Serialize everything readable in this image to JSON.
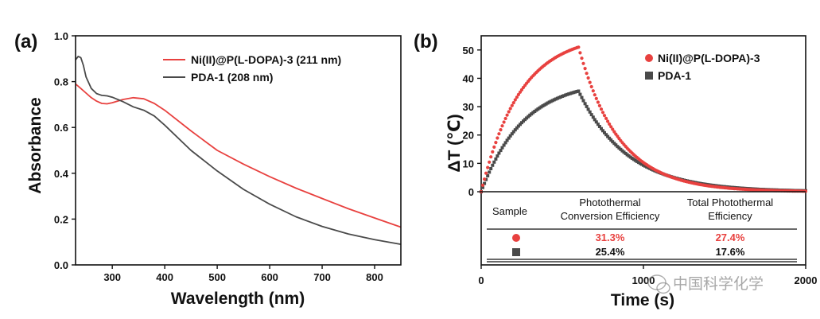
{
  "colors": {
    "red": "#e8413f",
    "dark": "#4a4a4a",
    "axis": "#111111"
  },
  "chart_data": [
    {
      "panel_label": "(a)",
      "type": "line",
      "xlabel": "Wavelength (nm)",
      "ylabel": "Absorbance",
      "xlim": [
        230,
        850
      ],
      "ylim": [
        0.0,
        1.0
      ],
      "xticks": [
        300,
        400,
        500,
        600,
        700,
        800
      ],
      "yticks": [
        0.0,
        0.2,
        0.4,
        0.6,
        0.8,
        1.0
      ],
      "ytick_labels": [
        "0.0",
        "0.2",
        "0.4",
        "0.6",
        "0.8",
        "1.0"
      ],
      "legend_position": "top-right",
      "series": [
        {
          "name": "Ni(II)@P(L-DOPA)-3 (211 nm)",
          "color": "#e8413f",
          "x": [
            230,
            240,
            250,
            260,
            270,
            280,
            290,
            300,
            310,
            320,
            340,
            360,
            380,
            400,
            450,
            500,
            550,
            600,
            650,
            700,
            750,
            800,
            850
          ],
          "y": [
            0.79,
            0.77,
            0.75,
            0.73,
            0.715,
            0.705,
            0.703,
            0.708,
            0.715,
            0.722,
            0.73,
            0.725,
            0.705,
            0.675,
            0.585,
            0.5,
            0.44,
            0.385,
            0.335,
            0.29,
            0.245,
            0.205,
            0.165
          ]
        },
        {
          "name": "PDA-1 (208 nm)",
          "color": "#4a4a4a",
          "x": [
            230,
            235,
            240,
            245,
            250,
            260,
            270,
            280,
            290,
            300,
            320,
            340,
            360,
            380,
            400,
            450,
            500,
            550,
            600,
            650,
            700,
            750,
            800,
            850
          ],
          "y": [
            0.895,
            0.91,
            0.905,
            0.87,
            0.82,
            0.77,
            0.748,
            0.74,
            0.738,
            0.732,
            0.713,
            0.69,
            0.675,
            0.65,
            0.61,
            0.5,
            0.41,
            0.33,
            0.265,
            0.21,
            0.168,
            0.135,
            0.11,
            0.09
          ]
        }
      ]
    },
    {
      "panel_label": "(b)",
      "type": "scatter",
      "xlabel": "Time (s)",
      "ylabel": "ΔT (℃)",
      "xlim": [
        0,
        2000
      ],
      "ylim": [
        0,
        55
      ],
      "xticks": [
        0,
        1000,
        2000
      ],
      "yticks": [
        0,
        10,
        20,
        30,
        40,
        50
      ],
      "legend_position": "top-right",
      "series": [
        {
          "name": "Ni(II)@P(L-DOPA)-3",
          "marker": "circle",
          "color": "#e8413f",
          "t_peak": 600,
          "heating_max": 51,
          "heating_tau": 240,
          "cooling_tau": 250
        },
        {
          "name": "PDA-1",
          "marker": "square",
          "color": "#4a4a4a",
          "t_peak": 600,
          "heating_max": 35.5,
          "heating_tau": 260,
          "cooling_tau": 300
        }
      ],
      "table": {
        "headers": [
          "Sample",
          "Photothermal\nConversion Efficiency",
          "Total Photothermal\nEfficiency"
        ],
        "rows": [
          {
            "marker": "circle",
            "color": "#e8413f",
            "pce": "31.3%",
            "tpe": "27.4%"
          },
          {
            "marker": "square",
            "color": "#4a4a4a",
            "pce": "25.4%",
            "tpe": "17.6%"
          }
        ]
      }
    }
  ],
  "watermark": "中国科学化学"
}
